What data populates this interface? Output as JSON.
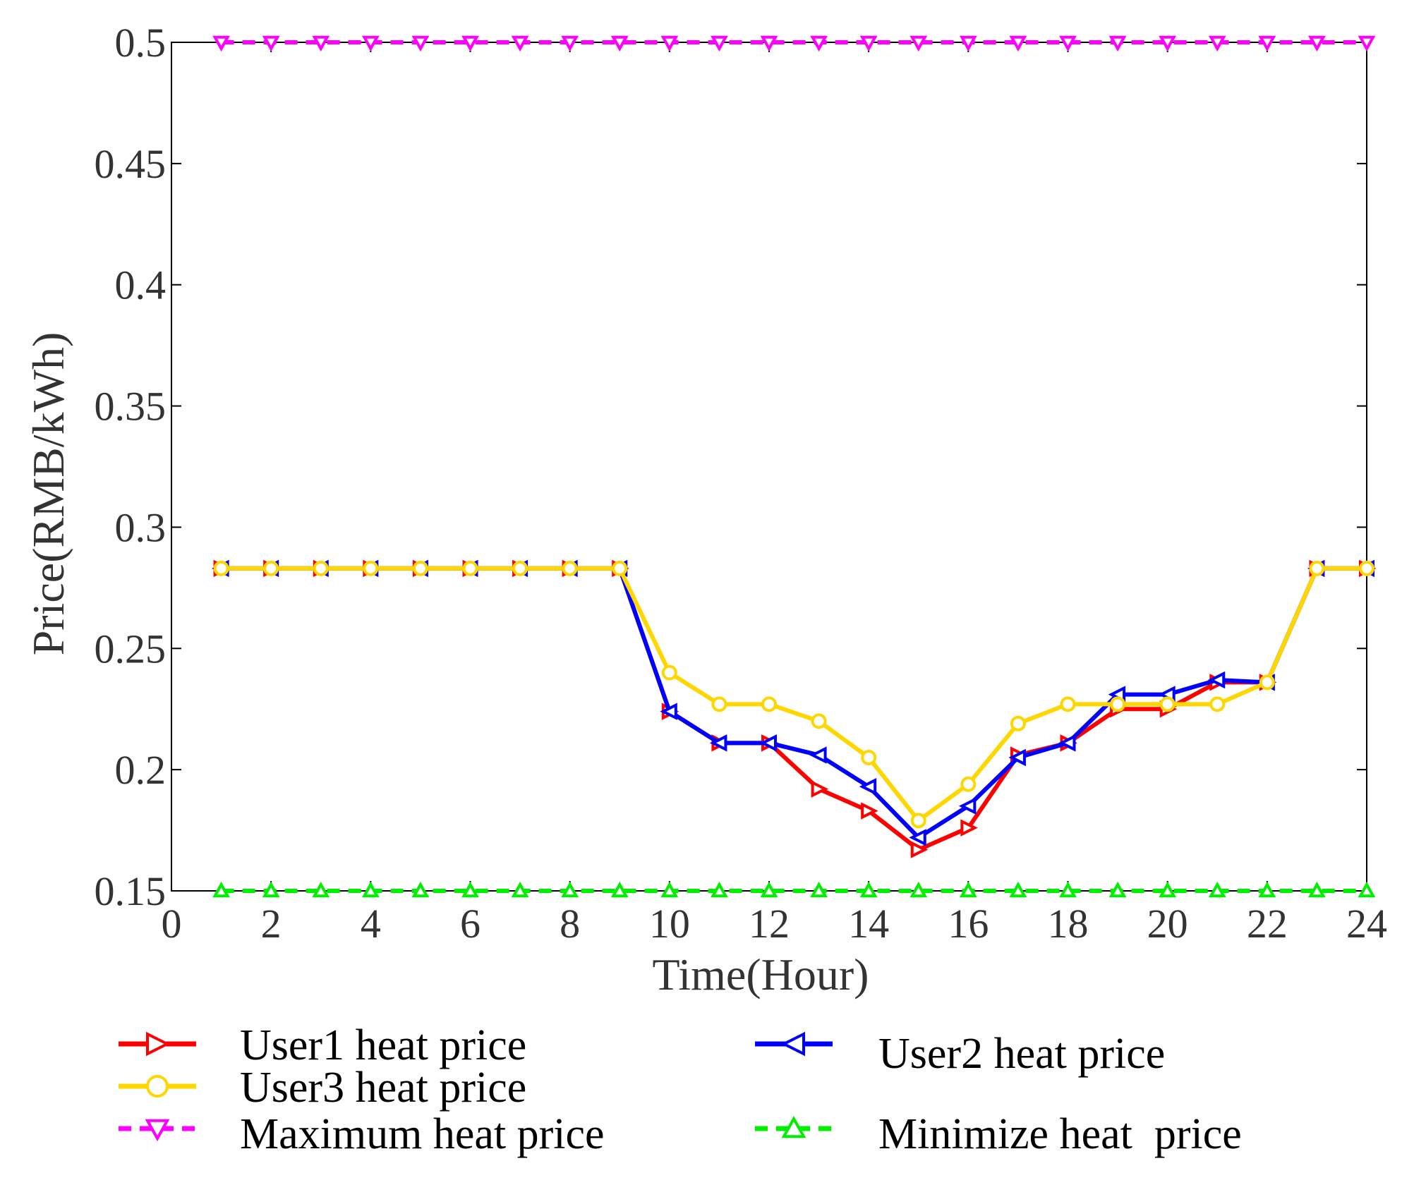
{
  "chart_data": {
    "type": "line",
    "title": "",
    "xlabel": "Time(Hour)",
    "ylabel": "Price(RMB/kWh)",
    "xlim": [
      0,
      24
    ],
    "ylim": [
      0.15,
      0.5
    ],
    "xticks": [
      0,
      2,
      4,
      6,
      8,
      10,
      12,
      14,
      16,
      18,
      20,
      22,
      24
    ],
    "xtick_labels": [
      "0",
      "2",
      "4",
      "6",
      "8",
      "10",
      "12",
      "14",
      "16",
      "18",
      "20",
      "22",
      "24"
    ],
    "yticks": [
      0.15,
      0.2,
      0.25,
      0.3,
      0.35,
      0.4,
      0.45,
      0.5
    ],
    "ytick_labels": [
      "0.15",
      "0.2",
      "0.25",
      "0.3",
      "0.35",
      "0.4",
      "0.45",
      "0.5"
    ],
    "grid": false,
    "legend_position": "bottom",
    "x": [
      1,
      2,
      3,
      4,
      5,
      6,
      7,
      8,
      9,
      10,
      11,
      12,
      13,
      14,
      15,
      16,
      17,
      18,
      19,
      20,
      21,
      22,
      23,
      24
    ],
    "series": [
      {
        "name": "User1 heat price",
        "color": "#ff0000",
        "marker": "triangle-right",
        "dashed": false,
        "values": [
          0.283,
          0.283,
          0.283,
          0.283,
          0.283,
          0.283,
          0.283,
          0.283,
          0.283,
          0.224,
          0.211,
          0.211,
          0.192,
          0.183,
          0.167,
          0.176,
          0.206,
          0.211,
          0.225,
          0.225,
          0.236,
          0.236,
          0.283,
          0.283
        ]
      },
      {
        "name": "User2 heat price",
        "color": "#0000ff",
        "marker": "triangle-left",
        "dashed": false,
        "values": [
          0.283,
          0.283,
          0.283,
          0.283,
          0.283,
          0.283,
          0.283,
          0.283,
          0.283,
          0.224,
          0.211,
          0.211,
          0.206,
          0.193,
          0.172,
          0.185,
          0.205,
          0.211,
          0.231,
          0.231,
          0.237,
          0.236,
          0.283,
          0.283
        ]
      },
      {
        "name": "User3 heat price",
        "color": "#ffd700",
        "marker": "circle",
        "dashed": false,
        "values": [
          0.283,
          0.283,
          0.283,
          0.283,
          0.283,
          0.283,
          0.283,
          0.283,
          0.283,
          0.24,
          0.227,
          0.227,
          0.22,
          0.205,
          0.179,
          0.194,
          0.219,
          0.227,
          0.227,
          0.227,
          0.227,
          0.236,
          0.283,
          0.283
        ]
      },
      {
        "name": "Maximum heat price",
        "color": "#ff00ff",
        "marker": "triangle-down",
        "dashed": true,
        "values": [
          0.5,
          0.5,
          0.5,
          0.5,
          0.5,
          0.5,
          0.5,
          0.5,
          0.5,
          0.5,
          0.5,
          0.5,
          0.5,
          0.5,
          0.5,
          0.5,
          0.5,
          0.5,
          0.5,
          0.5,
          0.5,
          0.5,
          0.5,
          0.5
        ]
      },
      {
        "name": "Minimize heat  price",
        "color": "#00ee00",
        "marker": "triangle-up",
        "dashed": true,
        "values": [
          0.15,
          0.15,
          0.15,
          0.15,
          0.15,
          0.15,
          0.15,
          0.15,
          0.15,
          0.15,
          0.15,
          0.15,
          0.15,
          0.15,
          0.15,
          0.15,
          0.15,
          0.15,
          0.15,
          0.15,
          0.15,
          0.15,
          0.15,
          0.15
        ]
      }
    ]
  }
}
